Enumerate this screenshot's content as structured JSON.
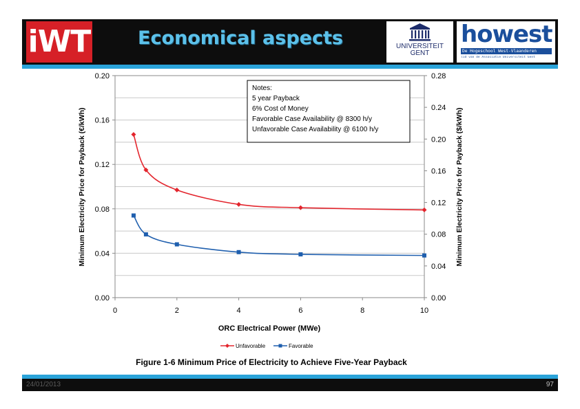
{
  "slide": {
    "title": "Economical aspects",
    "date": "24/01/2013",
    "page_number": "97"
  },
  "logos": {
    "iwt": "iWT",
    "ugent": "UNIVERSITEIT\nGENT",
    "howest_word": "howest",
    "howest_sub": "De Hogeschool West-Vlaanderen",
    "howest_tag": "lid van de Associatie Universiteit Gent"
  },
  "colors": {
    "header_bg": "#0d0d0d",
    "band_blue": "#2aa3d9",
    "title_blue": "#5cc1ea",
    "unfavorable": "#e3252d",
    "favorable": "#1f5fae"
  },
  "chart_data": {
    "type": "line",
    "caption": "Figure 1-6 Minimum Price of Electricity to Achieve Five-Year Payback",
    "xlabel": "ORC Electrical Power (MWe)",
    "ylabel_left": "Minimum Electricity Price for Payback (€/kWh)",
    "ylabel_right": "Minimum Electricity Price for Payback ($/kWh)",
    "xlim": [
      0,
      10
    ],
    "ylim_left": [
      0,
      0.2
    ],
    "ylim_right": [
      0,
      0.28
    ],
    "x_ticks": [
      "0",
      "2",
      "4",
      "6",
      "8",
      "10"
    ],
    "y_left_ticks": [
      "0.00",
      "0.04",
      "0.08",
      "0.12",
      "0.16",
      "0.20"
    ],
    "y_right_ticks": [
      "0.00",
      "0.04",
      "0.08",
      "0.12",
      "0.16",
      "0.20",
      "0.24",
      "0.28"
    ],
    "grid": "horizontal",
    "legend_position": "bottom",
    "notes": [
      "Notes:",
      "5 year Payback",
      "6% Cost of Money",
      "Favorable Case Availability @ 8300 h/y",
      "Unfavorable Case Availability @ 6100 h/y"
    ],
    "series": [
      {
        "name": "Unfavorable",
        "marker": "diamond",
        "x": [
          0.6,
          1,
          2,
          4,
          6,
          10
        ],
        "y": [
          0.147,
          0.115,
          0.097,
          0.084,
          0.081,
          0.079
        ]
      },
      {
        "name": "Favorable",
        "marker": "square",
        "x": [
          0.6,
          1,
          2,
          4,
          6,
          10
        ],
        "y": [
          0.074,
          0.057,
          0.048,
          0.041,
          0.039,
          0.038
        ]
      }
    ]
  }
}
